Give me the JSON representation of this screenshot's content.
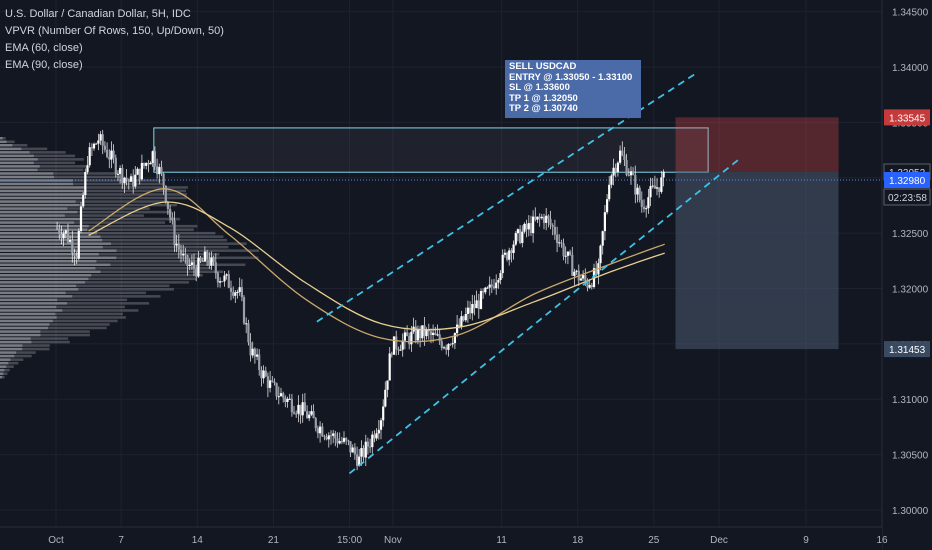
{
  "legend": {
    "title": "U.S. Dollar / Canadian Dollar, 5H, IDC",
    "vpvr": "VPVR (Number Of Rows, 150, Up/Down, 50)",
    "ema60": "EMA (60, close)",
    "ema90": "EMA (90, close)"
  },
  "note": {
    "line1": "SELL USDCAD",
    "line2": "ENTRY @ 1.33050 - 1.33100",
    "line3": "SL @ 1.33600",
    "line4": "TP 1 @ 1.32050",
    "line5": "TP 2 @ 1.30740"
  },
  "colors": {
    "background": "#131722",
    "candle": "#ffffff",
    "ema60": "#c9a86a",
    "ema90": "#e8cf91",
    "channel": "#3fc1e6",
    "stop_zone": "#ff5252",
    "target_zone": "#4a5a70",
    "entry_box": "#7fd7ee",
    "price_tag_current": "#2962ff",
    "price_tag_stop": "#c53a3a"
  },
  "chart_data": {
    "type": "candlestick",
    "symbol": "USDCAD",
    "timeframe": "5H",
    "ylim": [
      1.2995,
      1.3485
    ],
    "y_ticks": [
      "1.34500",
      "1.34000",
      "1.33500",
      "1.33000",
      "1.32500",
      "1.32000",
      "1.31500",
      "1.31000",
      "1.30500",
      "1.30000"
    ],
    "x_ticks": [
      "Oct",
      "7",
      "14",
      "21",
      "15:00",
      "Nov",
      "11",
      "18",
      "25",
      "Dec",
      "9",
      "16"
    ],
    "price_tags": {
      "stop": "1.33545",
      "entry": "1.33052",
      "current": "1.32980",
      "countdown": "02:23:58",
      "target": "1.31453"
    },
    "price_path": [
      {
        "t": "Oct 1",
        "p": 1.3255
      },
      {
        "t": "Oct 2",
        "p": 1.325
      },
      {
        "t": "Oct 3",
        "p": 1.3232
      },
      {
        "t": "Oct 4",
        "p": 1.3318
      },
      {
        "t": "Oct 5",
        "p": 1.3335
      },
      {
        "t": "Oct 6",
        "p": 1.332
      },
      {
        "t": "Oct 7",
        "p": 1.3305
      },
      {
        "t": "Oct 8",
        "p": 1.3295
      },
      {
        "t": "Oct 9",
        "p": 1.3308
      },
      {
        "t": "Oct 10",
        "p": 1.3322
      },
      {
        "t": "Oct 11",
        "p": 1.3295
      },
      {
        "t": "Oct 12",
        "p": 1.3245
      },
      {
        "t": "Oct 13",
        "p": 1.3222
      },
      {
        "t": "Oct 14",
        "p": 1.3218
      },
      {
        "t": "Oct 15",
        "p": 1.3228
      },
      {
        "t": "Oct 16",
        "p": 1.3212
      },
      {
        "t": "Oct 17",
        "p": 1.3205
      },
      {
        "t": "Oct 18",
        "p": 1.3195
      },
      {
        "t": "Oct 19",
        "p": 1.3145
      },
      {
        "t": "Oct 20",
        "p": 1.3125
      },
      {
        "t": "Oct 21",
        "p": 1.311
      },
      {
        "t": "Oct 22",
        "p": 1.3102
      },
      {
        "t": "Oct 23",
        "p": 1.3095
      },
      {
        "t": "Oct 24",
        "p": 1.3088
      },
      {
        "t": "Oct 25",
        "p": 1.3078
      },
      {
        "t": "Oct 26",
        "p": 1.307
      },
      {
        "t": "Oct 27",
        "p": 1.3064
      },
      {
        "t": "Oct 28",
        "p": 1.3058
      },
      {
        "t": "Oct 29",
        "p": 1.3045
      },
      {
        "t": "Oct 30",
        "p": 1.3062
      },
      {
        "t": "Oct 31",
        "p": 1.3085
      },
      {
        "t": "Nov 1",
        "p": 1.3148
      },
      {
        "t": "Nov 2",
        "p": 1.3152
      },
      {
        "t": "Nov 3",
        "p": 1.3158
      },
      {
        "t": "Nov 4",
        "p": 1.316
      },
      {
        "t": "Nov 5",
        "p": 1.3155
      },
      {
        "t": "Nov 6",
        "p": 1.315
      },
      {
        "t": "Nov 7",
        "p": 1.3162
      },
      {
        "t": "Nov 8",
        "p": 1.3178
      },
      {
        "t": "Nov 9",
        "p": 1.3188
      },
      {
        "t": "Nov 10",
        "p": 1.3198
      },
      {
        "t": "Nov 11",
        "p": 1.322
      },
      {
        "t": "Nov 12",
        "p": 1.324
      },
      {
        "t": "Nov 13",
        "p": 1.325
      },
      {
        "t": "Nov 14",
        "p": 1.3258
      },
      {
        "t": "Nov 15",
        "p": 1.3265
      },
      {
        "t": "Nov 16",
        "p": 1.3252
      },
      {
        "t": "Nov 17",
        "p": 1.323
      },
      {
        "t": "Nov 18",
        "p": 1.3212
      },
      {
        "t": "Nov 19",
        "p": 1.3205
      },
      {
        "t": "Nov 20",
        "p": 1.3215
      },
      {
        "t": "Nov 21",
        "p": 1.33
      },
      {
        "t": "Nov 22",
        "p": 1.3322
      },
      {
        "t": "Nov 23",
        "p": 1.3302
      },
      {
        "t": "Nov 24",
        "p": 1.3275
      },
      {
        "t": "Nov 25",
        "p": 1.3288
      },
      {
        "t": "Nov 26",
        "p": 1.3298
      }
    ],
    "ema60": [
      {
        "t": "Oct 4",
        "p": 1.3252
      },
      {
        "t": "Oct 11",
        "p": 1.329
      },
      {
        "t": "Oct 17",
        "p": 1.3248
      },
      {
        "t": "Oct 24",
        "p": 1.319
      },
      {
        "t": "Oct 31",
        "p": 1.3155
      },
      {
        "t": "Nov 7",
        "p": 1.3158
      },
      {
        "t": "Nov 14",
        "p": 1.3195
      },
      {
        "t": "Nov 21",
        "p": 1.3222
      },
      {
        "t": "Nov 26",
        "p": 1.324
      }
    ],
    "ema90": [
      {
        "t": "Oct 4",
        "p": 1.3248
      },
      {
        "t": "Oct 11",
        "p": 1.3278
      },
      {
        "t": "Oct 17",
        "p": 1.3255
      },
      {
        "t": "Oct 24",
        "p": 1.3205
      },
      {
        "t": "Oct 31",
        "p": 1.3168
      },
      {
        "t": "Nov 7",
        "p": 1.3165
      },
      {
        "t": "Nov 14",
        "p": 1.3188
      },
      {
        "t": "Nov 21",
        "p": 1.3215
      },
      {
        "t": "Nov 26",
        "p": 1.3232
      }
    ],
    "channel_upper": [
      {
        "t": "Oct 25",
        "p": 1.317
      },
      {
        "t": "Nov 29",
        "p": 1.3395
      }
    ],
    "channel_lower": [
      {
        "t": "Oct 28",
        "p": 1.3033
      },
      {
        "t": "Dec 3",
        "p": 1.3318
      }
    ],
    "resistance_box": {
      "top": 1.3345,
      "bottom": 1.3305,
      "from": "Oct 10",
      "to": "Nov 30"
    },
    "stop_zone": {
      "top": 1.33545,
      "bottom": 1.33052,
      "from": "Nov 27",
      "to": "Dec 12"
    },
    "target_zone": {
      "top": 1.33052,
      "bottom": 1.31453,
      "from": "Nov 27",
      "to": "Dec 12"
    },
    "current_price": 1.3298
  }
}
